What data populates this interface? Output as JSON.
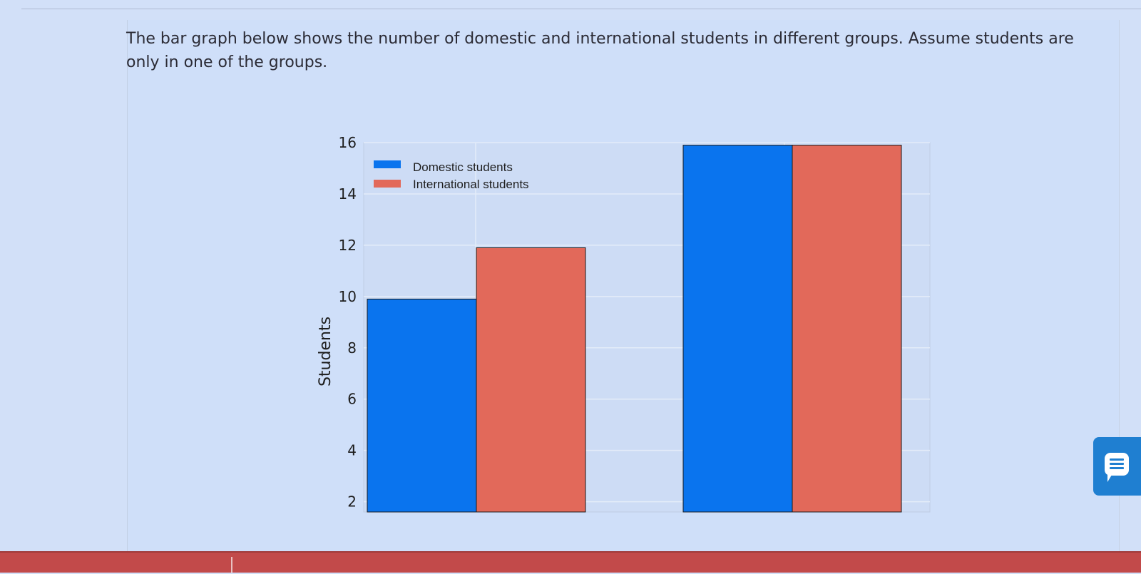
{
  "question": {
    "text": "The bar graph below shows the number of domestic and international students in different groups. Assume students are only in one of the groups."
  },
  "chart_data": {
    "type": "bar",
    "categories": [
      "",
      ""
    ],
    "series": [
      {
        "name": "Domestic students",
        "values": [
          9.9,
          15.9
        ],
        "color": "#0a74ee"
      },
      {
        "name": "International students",
        "values": [
          11.9,
          15.9
        ],
        "color": "#e2695a"
      }
    ],
    "ylabel": "Students",
    "yticks": [
      2,
      4,
      6,
      8,
      10,
      12,
      14,
      16
    ],
    "ylim": [
      1.6,
      16
    ],
    "grid": true,
    "legend_position": "top-left"
  },
  "colors": {
    "domestic": "#0a74ee",
    "international": "#e2695a",
    "feedback_button": "#1f7fd1",
    "bottom_bar": "#c24a4a"
  },
  "icons": {
    "feedback": "speech-bubble-icon"
  }
}
